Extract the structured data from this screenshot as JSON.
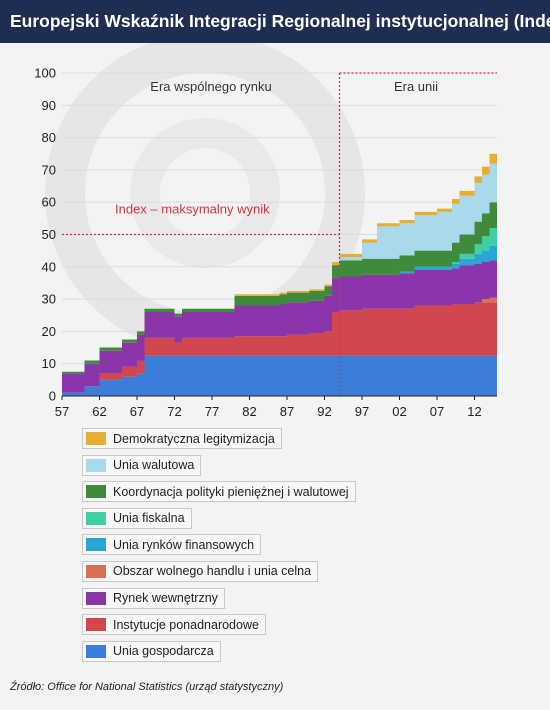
{
  "title": "Europejski Wskaźnik Integracji Regionalnej instytucjonalnej (Index)",
  "source": "Źródło: Office for National Statistics (urząd statystyczny)",
  "chart_data": {
    "type": "area",
    "stacked": true,
    "ylim": [
      0,
      100
    ],
    "xlim": [
      1957,
      2015
    ],
    "y_ticks": [
      0,
      10,
      20,
      30,
      40,
      50,
      60,
      70,
      80,
      90,
      100
    ],
    "x_ticks": [
      1957,
      1962,
      1967,
      1972,
      1977,
      1982,
      1987,
      1992,
      1997,
      2002,
      2007,
      2012
    ],
    "x_tick_labels": [
      "57",
      "62",
      "67",
      "72",
      "77",
      "82",
      "87",
      "92",
      "97",
      "02",
      "07",
      "12"
    ],
    "grid": "horizontal",
    "legend_position": "bottom",
    "x": [
      1957,
      1960,
      1962,
      1965,
      1967,
      1968,
      1972,
      1973,
      1979,
      1980,
      1986,
      1987,
      1990,
      1992,
      1993,
      1994,
      1997,
      1999,
      2002,
      2004,
      2007,
      2009,
      2010,
      2012,
      2013,
      2014,
      2015
    ],
    "series": [
      {
        "name": "Unia gospodarcza",
        "color": "#3b7dd8",
        "values": [
          1,
          3,
          5,
          6,
          7,
          12.5,
          12.5,
          12.5,
          12.5,
          12.5,
          12.5,
          12.5,
          12.5,
          12.5,
          12.5,
          12.5,
          12.5,
          12.5,
          12.5,
          12.5,
          12.5,
          12.5,
          12.5,
          12.5,
          12.5,
          12.5,
          12.5
        ]
      },
      {
        "name": "Instytucje ponadnarodowe",
        "color": "#d2474e",
        "values": [
          0,
          0,
          2,
          3,
          4,
          5.5,
          4,
          5.5,
          5.5,
          6,
          6,
          6.5,
          7,
          7.5,
          13.5,
          14,
          14.5,
          14.5,
          14.5,
          15.5,
          15.5,
          16,
          16,
          16.5,
          16.5,
          16.5,
          16.5
        ]
      },
      {
        "name": "Obszar wolnego handlu i unia celna",
        "color": "#d97055",
        "values": [
          0,
          0,
          0,
          0,
          0,
          0,
          0,
          0,
          0,
          0,
          0,
          0,
          0,
          0,
          0,
          0,
          0,
          0,
          0,
          0,
          0,
          0,
          0,
          0,
          1,
          1.5,
          1.5
        ]
      },
      {
        "name": "Rynek wewnętrzny",
        "color": "#8a35a9",
        "values": [
          6,
          7,
          7,
          7.5,
          8,
          8,
          8,
          8,
          8,
          9.5,
          10,
          10,
          10,
          11,
          10.5,
          10.5,
          10.5,
          10.5,
          11,
          11,
          11,
          11,
          12,
          12,
          11.5,
          11.5,
          11.5
        ]
      },
      {
        "name": "Unia rynków finansowych",
        "color": "#2aa6d4",
        "values": [
          0,
          0,
          0,
          0,
          0,
          0,
          0,
          0,
          0,
          0,
          0,
          0,
          0,
          0,
          0,
          0,
          0,
          0,
          0.5,
          1,
          1,
          1.5,
          2,
          3,
          3.5,
          4.5,
          4.5
        ]
      },
      {
        "name": "Unia fiskalna",
        "color": "#3fcfa6",
        "values": [
          0,
          0,
          0,
          0,
          0,
          0,
          0,
          0,
          0,
          0,
          0,
          0,
          0,
          0,
          0,
          0,
          0,
          0,
          0,
          0,
          0,
          0.5,
          1.5,
          3,
          4.5,
          5.5,
          5.5
        ]
      },
      {
        "name": "Koordynacja polityki pieniężnej i walutowej",
        "color": "#3f8a3b",
        "values": [
          0.5,
          1,
          1,
          1,
          1,
          1,
          1,
          1,
          1,
          3,
          3,
          3,
          3,
          3,
          4,
          5,
          5,
          5,
          5,
          5,
          5,
          6,
          6,
          7,
          7,
          8,
          10
        ]
      },
      {
        "name": "Unia walutowa",
        "color": "#a8d9ec",
        "values": [
          0,
          0,
          0,
          0,
          0,
          0,
          0,
          0,
          0,
          0,
          0,
          0,
          0,
          0,
          0,
          1,
          5,
          10,
          10,
          11,
          12,
          12,
          12,
          12,
          12,
          12,
          12
        ]
      },
      {
        "name": "Demokratyczna legitymizacja",
        "color": "#e8ae32",
        "values": [
          0,
          0,
          0,
          0,
          0,
          0,
          0,
          0,
          0,
          0.5,
          0.5,
          0.5,
          0.5,
          0.5,
          1,
          1,
          1,
          1,
          1,
          1,
          1,
          1.5,
          1.5,
          2,
          2.5,
          3,
          3
        ]
      }
    ],
    "annotations": [
      {
        "text": "Index – maksymalny wynik",
        "y": 50,
        "color": "#d6343d"
      },
      {
        "text": "Era wspólnego rynku"
      },
      {
        "text": "Era unii"
      }
    ],
    "era_boundary_x": 1994
  },
  "legend_order": [
    8,
    7,
    6,
    5,
    4,
    2,
    3,
    1,
    0
  ]
}
